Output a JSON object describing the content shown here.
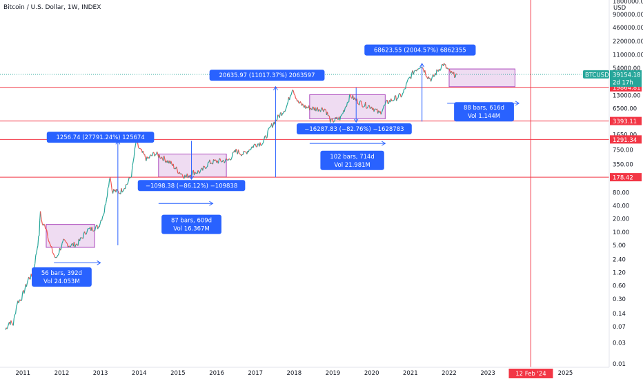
{
  "chart_data": {
    "type": "candlestick",
    "title": "Bitcoin / U.S. Dollar, 1W, INDEX",
    "currency": "USD",
    "y_scale": "log",
    "ylim": [
      0.01,
      1800000
    ],
    "xlim": [
      2010.55,
      2025.9
    ],
    "y_ticks": [
      {
        "v": 1800000,
        "label": "1800000.00"
      },
      {
        "v": 900000,
        "label": "900000.00"
      },
      {
        "v": 460000,
        "label": "460000.00"
      },
      {
        "v": 220000,
        "label": "220000.00"
      },
      {
        "v": 110000,
        "label": "110000.00"
      },
      {
        "v": 54000,
        "label": "54000.00"
      },
      {
        "v": 13000,
        "label": "13000.00"
      },
      {
        "v": 6500,
        "label": "6500.00"
      },
      {
        "v": 1650,
        "label": "1650.00"
      },
      {
        "v": 750,
        "label": "750.00"
      },
      {
        "v": 350,
        "label": "350.00"
      },
      {
        "v": 80,
        "label": "80.00"
      },
      {
        "v": 40,
        "label": "40.00"
      },
      {
        "v": 20,
        "label": "20.00"
      },
      {
        "v": 10,
        "label": "10.00"
      },
      {
        "v": 5,
        "label": "5.00"
      },
      {
        "v": 2.4,
        "label": "2.40"
      },
      {
        "v": 1.2,
        "label": "1.20"
      },
      {
        "v": 0.6,
        "label": "0.60"
      },
      {
        "v": 0.3,
        "label": "0.30"
      },
      {
        "v": 0.14,
        "label": "0.14"
      },
      {
        "v": 0.07,
        "label": "0.07"
      },
      {
        "v": 0.03,
        "label": "0.03"
      },
      {
        "v": 0.01,
        "label": "0.01"
      }
    ],
    "x_ticks": [
      {
        "v": 2011,
        "label": "2011"
      },
      {
        "v": 2012,
        "label": "2012"
      },
      {
        "v": 2013,
        "label": "2013"
      },
      {
        "v": 2014,
        "label": "2014"
      },
      {
        "v": 2015,
        "label": "2015"
      },
      {
        "v": 2016,
        "label": "2016"
      },
      {
        "v": 2017,
        "label": "2017"
      },
      {
        "v": 2018,
        "label": "2018"
      },
      {
        "v": 2019,
        "label": "2019"
      },
      {
        "v": 2020,
        "label": "2020"
      },
      {
        "v": 2021,
        "label": "2021"
      },
      {
        "v": 2022,
        "label": "2022"
      },
      {
        "v": 2023,
        "label": "2023"
      },
      {
        "v": 2025,
        "label": "2025"
      }
    ],
    "vertical_marker": {
      "x": 2024.11,
      "label": "12 Feb '24",
      "color": "#f23645"
    },
    "price_path": [
      [
        2010.55,
        0.06
      ],
      [
        2010.65,
        0.09
      ],
      [
        2010.75,
        0.08
      ],
      [
        2010.85,
        0.25
      ],
      [
        2010.95,
        0.3
      ],
      [
        2011.05,
        0.5
      ],
      [
        2011.15,
        0.9
      ],
      [
        2011.25,
        1.0
      ],
      [
        2011.35,
        3.5
      ],
      [
        2011.42,
        9.0
      ],
      [
        2011.45,
        30.0
      ],
      [
        2011.5,
        15.0
      ],
      [
        2011.6,
        13.0
      ],
      [
        2011.7,
        5.0
      ],
      [
        2011.85,
        2.4
      ],
      [
        2011.95,
        4.0
      ],
      [
        2012.05,
        6.0
      ],
      [
        2012.2,
        5.0
      ],
      [
        2012.4,
        5.3
      ],
      [
        2012.55,
        8.0
      ],
      [
        2012.65,
        11.0
      ],
      [
        2012.8,
        12.0
      ],
      [
        2012.95,
        13.4
      ],
      [
        2013.1,
        30.0
      ],
      [
        2013.25,
        200.0
      ],
      [
        2013.3,
        90.0
      ],
      [
        2013.5,
        80.0
      ],
      [
        2013.7,
        130.0
      ],
      [
        2013.8,
        200.0
      ],
      [
        2013.85,
        400.0
      ],
      [
        2013.92,
        1150.0
      ],
      [
        2014.0,
        800.0
      ],
      [
        2014.1,
        600.0
      ],
      [
        2014.2,
        450.0
      ],
      [
        2014.4,
        620.0
      ],
      [
        2014.6,
        500.0
      ],
      [
        2014.8,
        380.0
      ],
      [
        2015.0,
        250.0
      ],
      [
        2015.2,
        180.0
      ],
      [
        2015.4,
        230.0
      ],
      [
        2015.6,
        240.0
      ],
      [
        2015.8,
        380.0
      ],
      [
        2016.0,
        410.0
      ],
      [
        2016.3,
        430.0
      ],
      [
        2016.5,
        700.0
      ],
      [
        2016.7,
        600.0
      ],
      [
        2017.0,
        1000.0
      ],
      [
        2017.2,
        1100.0
      ],
      [
        2017.4,
        2500.0
      ],
      [
        2017.6,
        4300.0
      ],
      [
        2017.8,
        7000.0
      ],
      [
        2017.96,
        19500.0
      ],
      [
        2018.1,
        9000.0
      ],
      [
        2018.3,
        7000.0
      ],
      [
        2018.5,
        6500.0
      ],
      [
        2018.8,
        6400.0
      ],
      [
        2018.95,
        3300.0
      ],
      [
        2019.2,
        4000.0
      ],
      [
        2019.45,
        13000.0
      ],
      [
        2019.6,
        10000.0
      ],
      [
        2019.8,
        8000.0
      ],
      [
        2020.0,
        7200.0
      ],
      [
        2020.2,
        5000.0
      ],
      [
        2020.4,
        9000.0
      ],
      [
        2020.6,
        11000.0
      ],
      [
        2020.8,
        13500.0
      ],
      [
        2020.95,
        29000.0
      ],
      [
        2021.1,
        47000.0
      ],
      [
        2021.28,
        64000.0
      ],
      [
        2021.45,
        35000.0
      ],
      [
        2021.55,
        30000.0
      ],
      [
        2021.7,
        47000.0
      ],
      [
        2021.85,
        67000.0
      ],
      [
        2022.0,
        46000.0
      ],
      [
        2022.1,
        38000.0
      ],
      [
        2022.2,
        39154.18
      ]
    ],
    "last_price": {
      "value": 39154.18,
      "label": "BTCUSD",
      "price_label": "39154.18",
      "countdown": "2d 17h"
    },
    "horizontal_levels": [
      {
        "y": 39154.18,
        "label": "",
        "style": "dotted",
        "color": "#26a69a"
      },
      {
        "y": 19864.81,
        "label": "19864.81",
        "color": "#f23645"
      },
      {
        "y": 3393.11,
        "label": "3393.11",
        "color": "#f23645"
      },
      {
        "y": 1291.34,
        "label": "1291.34",
        "color": "#f23645"
      },
      {
        "y": 178.42,
        "label": "178.42",
        "color": "#f23645"
      }
    ],
    "ranges": [
      {
        "x0": 2011.6,
        "x1": 2012.85,
        "y0": 4.5,
        "y1": 15.0
      },
      {
        "x0": 2014.5,
        "x1": 2016.25,
        "y0": 180.0,
        "y1": 600.0
      },
      {
        "x0": 2018.4,
        "x1": 2020.35,
        "y0": 3800.0,
        "y1": 13500.0
      },
      {
        "x0": 2022.0,
        "x1": 2023.7,
        "y0": 20500.0,
        "y1": 52000.0
      }
    ],
    "range_labels": [
      {
        "x": 2012.0,
        "y": 0.95,
        "lines": [
          "56 bars, 392d",
          "Vol 24.053M"
        ]
      },
      {
        "x": 2015.35,
        "y": 15.0,
        "lines": [
          "87 bars, 609d",
          "Vol 16.367M"
        ]
      },
      {
        "x": 2019.5,
        "y": 430.0,
        "lines": [
          "102 bars, 714d",
          "Vol 21.981M"
        ]
      },
      {
        "x": 2022.9,
        "y": 5500.0,
        "lines": [
          "88 bars, 616d",
          "Vol 1.144M"
        ]
      }
    ],
    "range_arrows": [
      {
        "x0": 2011.8,
        "x1": 2013.0,
        "y": 2.0
      },
      {
        "x0": 2014.5,
        "x1": 2015.9,
        "y": 45.0
      },
      {
        "x0": 2018.4,
        "x1": 2020.35,
        "y": 1050.0
      },
      {
        "x0": 2021.95,
        "x1": 2023.8,
        "y": 8600.0
      }
    ],
    "measurements": [
      {
        "x": 2013.45,
        "from": 5.0,
        "to": 1200.0,
        "label": "1256.74 (27791.24%) 125674",
        "label_x": 2013.0,
        "label_y": 1450.0,
        "direction": "up"
      },
      {
        "x": 2015.35,
        "from": 1200.0,
        "to": 160.0,
        "label": "−1098.38 (−86.12%) −109838",
        "label_x": 2015.35,
        "label_y": 115.0,
        "direction": "down"
      },
      {
        "x": 2017.52,
        "from": 178.0,
        "to": 20500.0,
        "label": "20635.97 (11017.37%) 2063597",
        "label_x": 2017.3,
        "label_y": 37500.0,
        "direction": "up"
      },
      {
        "x": 2019.6,
        "from": 19500.0,
        "to": 3200.0,
        "label": "−16287.83 (−82.76%) −1628783",
        "label_x": 2019.55,
        "label_y": 2250.0,
        "direction": "down"
      },
      {
        "x": 2021.3,
        "from": 3300.0,
        "to": 69000.0,
        "label": "68623.55 (2004.57%) 6862355",
        "label_x": 2021.25,
        "label_y": 140000.0,
        "direction": "up"
      }
    ]
  }
}
